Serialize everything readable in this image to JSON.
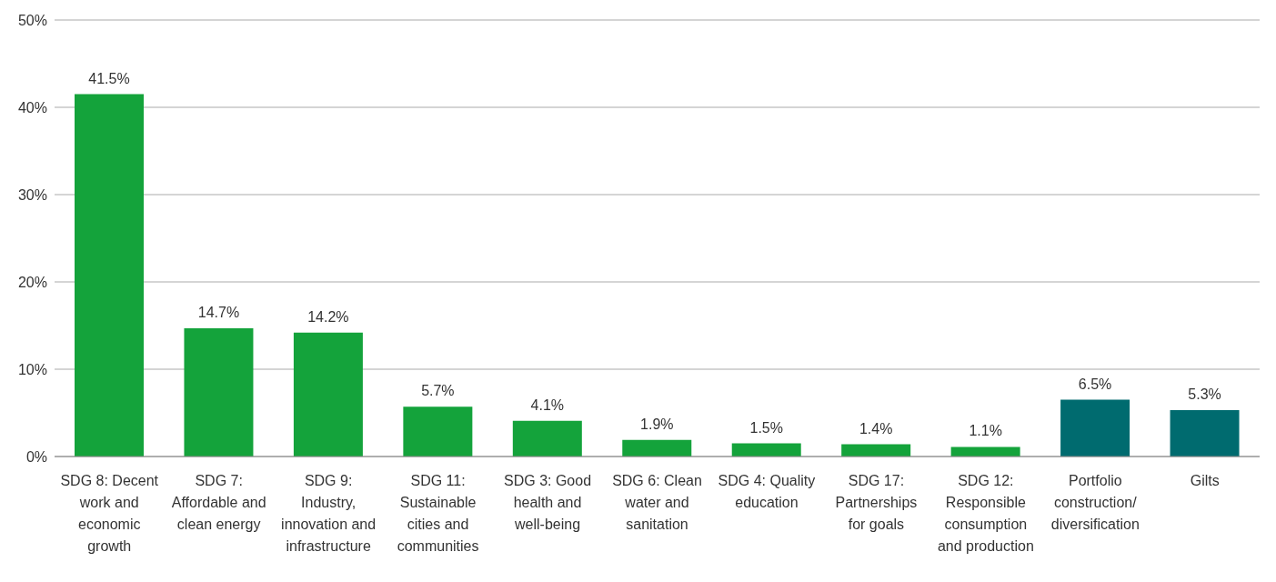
{
  "chart_data": {
    "type": "bar",
    "categories": [
      "SDG 8: Decent work and economic growth",
      "SDG 7: Affordable and clean energy",
      "SDG 9: Industry, innovation and infrastructure",
      "SDG 11: Sustainable cities and communities",
      "SDG 3: Good health and well-being",
      "SDG 6: Clean water and sanitation",
      "SDG 4: Quality education",
      "SDG 17: Partnerships for goals",
      "SDG 12: Responsible consumption and production",
      "Portfolio construction/diversification",
      "Gilts"
    ],
    "values": [
      41.5,
      14.7,
      14.2,
      5.7,
      4.1,
      1.9,
      1.5,
      1.4,
      1.1,
      6.5,
      5.3
    ],
    "colors": [
      "#14a33b",
      "#14a33b",
      "#14a33b",
      "#14a33b",
      "#14a33b",
      "#14a33b",
      "#14a33b",
      "#14a33b",
      "#14a33b",
      "#006b6f",
      "#006b6f"
    ],
    "value_labels": [
      "41.5%",
      "14.7%",
      "14.2%",
      "5.7%",
      "4.1%",
      "1.9%",
      "1.5%",
      "1.4%",
      "1.1%",
      "6.5%",
      "5.3%"
    ],
    "ylim": [
      0,
      50
    ],
    "yticks": [
      {
        "value": 0,
        "label": "0%"
      },
      {
        "value": 10,
        "label": "10%"
      },
      {
        "value": 20,
        "label": "20%"
      },
      {
        "value": 30,
        "label": "30%"
      },
      {
        "value": 40,
        "label": "40%"
      },
      {
        "value": 50,
        "label": "50%"
      }
    ],
    "grid": "y"
  }
}
